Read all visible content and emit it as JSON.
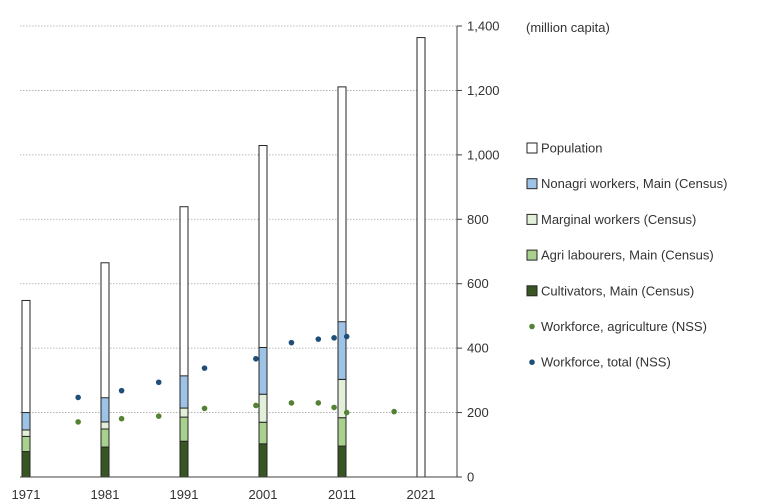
{
  "chart_data": {
    "type": "bar",
    "unit_label": "(million capita)",
    "ylim": [
      0,
      1400
    ],
    "y_ticks": [
      0,
      200,
      400,
      600,
      800,
      1000,
      1200,
      1400
    ],
    "y_tick_labels": [
      "0",
      "200",
      "400",
      "600",
      "800",
      "1,000",
      "1,200",
      "1,400"
    ],
    "x_ticks": [
      1971,
      1981,
      1991,
      2001,
      2011,
      2021
    ],
    "x_tick_labels": [
      "1971",
      "1981",
      "1991",
      "2001",
      "2011",
      "2021"
    ],
    "xlim": [
      1971,
      2021
    ],
    "y_axis_position": "right",
    "grid": "horizontal dotted",
    "legend_position": "right",
    "colors": {
      "population": "#ffffff",
      "nonagri": "#9dc3e6",
      "marginal": "#e2efd9",
      "agri_labourers": "#a9d18e",
      "cultivators": "#375623",
      "agri_nss": "#548235",
      "total_nss": "#1f4e79",
      "bar_outline": "#262626",
      "grid": "#a6a6a6"
    },
    "stacked_bars": [
      {
        "year": 1971,
        "cultivators": 79,
        "agri_labourers": 47,
        "marginal": 20,
        "nonagri": 54,
        "population": 548
      },
      {
        "year": 1981,
        "cultivators": 93,
        "agri_labourers": 56,
        "marginal": 22,
        "nonagri": 75,
        "population": 665
      },
      {
        "year": 1991,
        "cultivators": 111,
        "agri_labourers": 75,
        "marginal": 28,
        "nonagri": 100,
        "population": 839
      },
      {
        "year": 2001,
        "cultivators": 103,
        "agri_labourers": 67,
        "marginal": 87,
        "nonagri": 145,
        "population": 1029
      },
      {
        "year": 2011,
        "cultivators": 96,
        "agri_labourers": 88,
        "marginal": 119,
        "nonagri": 179,
        "population": 1211
      },
      {
        "year": 2021,
        "cultivators": 0,
        "agri_labourers": 0,
        "marginal": 0,
        "nonagri": 0,
        "population": 1364
      }
    ],
    "series": [
      {
        "name": "Workforce, agriculture (NSS)",
        "key": "agri_nss",
        "x": [
          1977.6,
          1983.1,
          1987.8,
          1993.6,
          2000.1,
          2004.6,
          2008.0,
          2010.0,
          2011.6,
          2017.6
        ],
        "y": [
          171,
          181,
          189,
          213,
          222,
          230,
          230,
          216,
          200,
          203
        ]
      },
      {
        "name": "Workforce, total (NSS)",
        "key": "total_nss",
        "x": [
          1977.6,
          1983.1,
          1987.8,
          1993.6,
          2000.1,
          2004.6,
          2008.0,
          2010.0,
          2011.6
        ],
        "y": [
          247,
          268,
          294,
          338,
          367,
          417,
          428,
          432,
          436
        ]
      }
    ],
    "legend": [
      {
        "label": "Population",
        "kind": "box",
        "key": "population"
      },
      {
        "label": "Nonagri workers, Main (Census)",
        "kind": "box",
        "key": "nonagri"
      },
      {
        "label": "Marginal workers (Census)",
        "kind": "box",
        "key": "marginal"
      },
      {
        "label": "Agri labourers, Main (Census)",
        "kind": "box",
        "key": "agri_labourers"
      },
      {
        "label": "Cultivators, Main (Census)",
        "kind": "box",
        "key": "cultivators"
      },
      {
        "label": "Workforce, agriculture (NSS)",
        "kind": "dot",
        "key": "agri_nss"
      },
      {
        "label": "Workforce, total (NSS)",
        "kind": "dot",
        "key": "total_nss"
      }
    ]
  }
}
